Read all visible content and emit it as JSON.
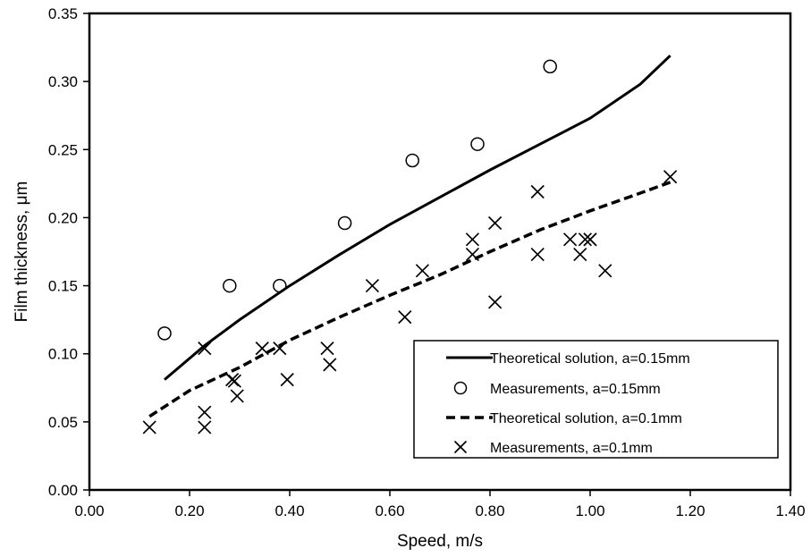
{
  "chart_data": {
    "type": "scatter",
    "title": "",
    "xlabel": "Speed, m/s",
    "ylabel": "Film thickness, μm",
    "xlim": [
      0,
      1.4
    ],
    "ylim": [
      0,
      0.35
    ],
    "x_ticks": [
      "0.00",
      "0.20",
      "0.40",
      "0.60",
      "0.80",
      "1.00",
      "1.20",
      "1.40"
    ],
    "y_ticks": [
      "0.00",
      "0.05",
      "0.10",
      "0.15",
      "0.20",
      "0.25",
      "0.30",
      "0.35"
    ],
    "grid": false,
    "legend_position": "bottom-right",
    "series": [
      {
        "name": "Theoretical solution, a=0.15mm",
        "kind": "line",
        "style": "solid",
        "x": [
          0.15,
          0.23,
          0.3,
          0.4,
          0.5,
          0.6,
          0.7,
          0.8,
          0.9,
          1.0,
          1.1,
          1.16
        ],
        "y": [
          0.081,
          0.106,
          0.125,
          0.15,
          0.173,
          0.195,
          0.215,
          0.235,
          0.254,
          0.273,
          0.298,
          0.319
        ]
      },
      {
        "name": "Measurements, a=0.15mm",
        "kind": "scatter",
        "marker": "circle",
        "x": [
          0.15,
          0.28,
          0.38,
          0.51,
          0.645,
          0.775,
          0.92
        ],
        "y": [
          0.115,
          0.15,
          0.15,
          0.196,
          0.242,
          0.254,
          0.311
        ]
      },
      {
        "name": "Theoretical solution, a=0.1mm",
        "kind": "line",
        "style": "dashed",
        "x": [
          0.12,
          0.2,
          0.3,
          0.4,
          0.5,
          0.6,
          0.7,
          0.8,
          0.9,
          1.0,
          1.1,
          1.16
        ],
        "y": [
          0.054,
          0.073,
          0.09,
          0.11,
          0.127,
          0.143,
          0.158,
          0.175,
          0.191,
          0.205,
          0.218,
          0.226
        ]
      },
      {
        "name": "Measurements, a=0.1mm",
        "kind": "scatter",
        "marker": "x",
        "x": [
          0.12,
          0.23,
          0.23,
          0.23,
          0.285,
          0.29,
          0.295,
          0.345,
          0.38,
          0.395,
          0.475,
          0.48,
          0.565,
          0.63,
          0.665,
          0.765,
          0.765,
          0.81,
          0.81,
          0.895,
          0.895,
          0.96,
          0.98,
          0.99,
          1.0,
          1.0,
          1.03,
          1.16
        ],
        "y": [
          0.046,
          0.104,
          0.057,
          0.046,
          0.081,
          0.08,
          0.069,
          0.104,
          0.104,
          0.081,
          0.104,
          0.092,
          0.15,
          0.127,
          0.161,
          0.184,
          0.173,
          0.196,
          0.138,
          0.219,
          0.173,
          0.184,
          0.173,
          0.184,
          0.184,
          0.184,
          0.161,
          0.23
        ]
      }
    ]
  }
}
